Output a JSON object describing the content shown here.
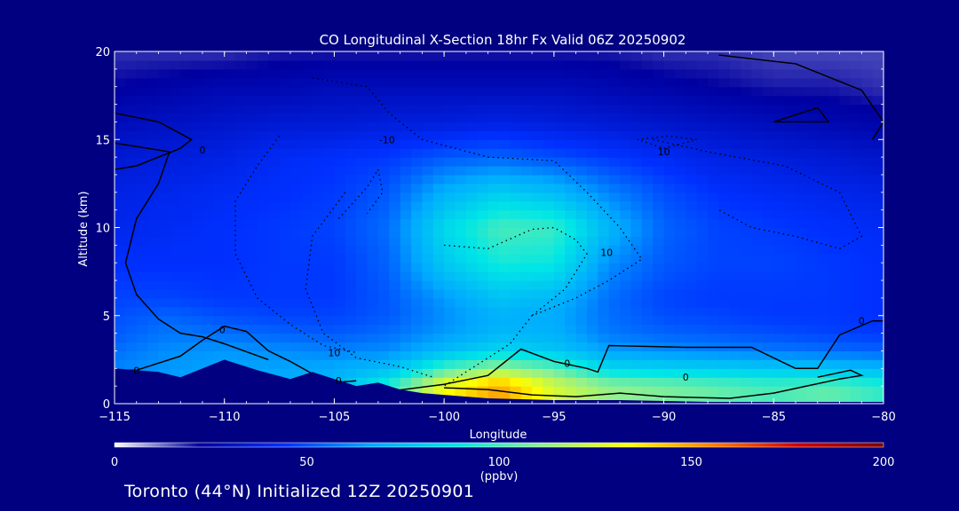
{
  "caption": "Toronto (44°N) Initialized 12Z 20250901",
  "chart_data": {
    "type": "heatmap",
    "title": "CO Longitudinal X-Section 18hr  Fx Valid 06Z 20250902",
    "xlabel": "Longitude",
    "ylabel": "Altitude (km)",
    "xlim": [
      -115,
      -80
    ],
    "ylim": [
      0,
      20
    ],
    "xticks": [
      -115,
      -110,
      -105,
      -100,
      -95,
      -90,
      -85,
      -80
    ],
    "xtick_labels": [
      "−115",
      "−110",
      "−105",
      "−100",
      "−95",
      "−90",
      "−85",
      "−80"
    ],
    "yticks": [
      0,
      5,
      10,
      15,
      20
    ],
    "colorbar": {
      "min": 0,
      "max": 200,
      "ticks": [
        0,
        50,
        100,
        150,
        200
      ],
      "unit": "(ppbv)",
      "colors": [
        "#ffffff",
        "#0000a0",
        "#0030ff",
        "#00a8ff",
        "#00e6e6",
        "#90f090",
        "#ffff00",
        "#ff8000",
        "#d00000",
        "#800000"
      ]
    },
    "x_sample": [
      -115,
      -112.5,
      -110,
      -107.5,
      -105,
      -102.5,
      -100,
      -97.5,
      -95,
      -92.5,
      -90,
      -87.5,
      -85,
      -82.5,
      -80
    ],
    "z_levels": [
      1,
      2,
      3,
      4,
      5,
      6,
      8,
      10,
      12,
      14,
      16,
      18,
      20
    ],
    "co_ppbv": [
      [
        62,
        66,
        68,
        70,
        72,
        96,
        132,
        150,
        125,
        112,
        108,
        104,
        100,
        104,
        96
      ],
      [
        60,
        64,
        66,
        66,
        68,
        74,
        100,
        114,
        104,
        84,
        82,
        80,
        78,
        76,
        72
      ],
      [
        56,
        62,
        64,
        62,
        60,
        62,
        74,
        84,
        78,
        66,
        62,
        60,
        58,
        56,
        54
      ],
      [
        52,
        58,
        56,
        54,
        52,
        56,
        64,
        72,
        70,
        58,
        54,
        52,
        50,
        48,
        46
      ],
      [
        50,
        54,
        50,
        48,
        48,
        52,
        62,
        70,
        68,
        56,
        50,
        48,
        46,
        46,
        44
      ],
      [
        48,
        48,
        46,
        46,
        46,
        52,
        64,
        76,
        72,
        56,
        48,
        46,
        46,
        46,
        44
      ],
      [
        44,
        44,
        44,
        46,
        46,
        54,
        78,
        92,
        90,
        62,
        52,
        48,
        48,
        46,
        44
      ],
      [
        40,
        42,
        44,
        46,
        48,
        56,
        84,
        100,
        98,
        72,
        54,
        48,
        46,
        44,
        42
      ],
      [
        38,
        40,
        42,
        44,
        46,
        52,
        70,
        80,
        74,
        60,
        50,
        44,
        42,
        40,
        38
      ],
      [
        34,
        36,
        38,
        42,
        44,
        46,
        52,
        54,
        50,
        46,
        42,
        38,
        36,
        34,
        32
      ],
      [
        28,
        30,
        32,
        34,
        34,
        36,
        36,
        38,
        36,
        34,
        32,
        30,
        28,
        26,
        24
      ],
      [
        22,
        24,
        26,
        26,
        28,
        28,
        28,
        28,
        28,
        26,
        24,
        22,
        20,
        20,
        18
      ],
      [
        18,
        18,
        18,
        20,
        20,
        20,
        20,
        20,
        20,
        20,
        18,
        18,
        16,
        16,
        16
      ]
    ],
    "contour_labels": [
      {
        "text": "0",
        "x": -114.0,
        "y": 1.9
      },
      {
        "text": "0",
        "x": -111.0,
        "y": 14.4
      },
      {
        "text": "0",
        "x": -110.1,
        "y": 4.2
      },
      {
        "text": "0",
        "x": -104.8,
        "y": 1.3
      },
      {
        "text": "10",
        "x": -105.0,
        "y": 2.9
      },
      {
        "text": "-10",
        "x": -102.6,
        "y": 15.0
      },
      {
        "text": "10",
        "x": -92.6,
        "y": 8.6
      },
      {
        "text": "0",
        "x": -94.4,
        "y": 2.3
      },
      {
        "text": "10",
        "x": -90.0,
        "y": 14.3
      },
      {
        "text": "0",
        "x": -89.0,
        "y": 1.5
      },
      {
        "text": "0",
        "x": -81.0,
        "y": 4.7
      }
    ]
  }
}
